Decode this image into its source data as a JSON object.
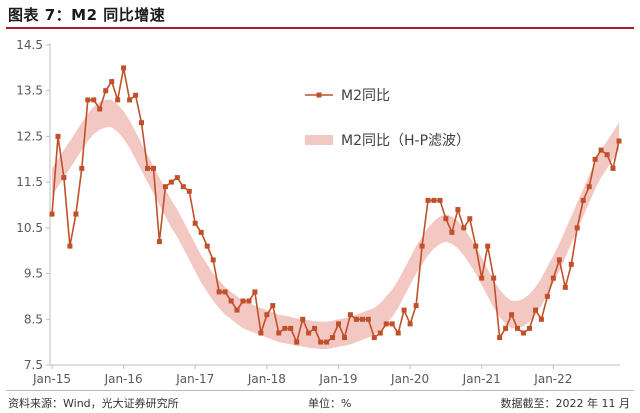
{
  "header": {
    "title": "图表 7：M2 同比增速"
  },
  "footer": {
    "source": "资料来源：Wind，光大证券研究所",
    "unit": "单位：%",
    "cutoff": "数据截至：2022 年 11 月"
  },
  "chart_data": {
    "type": "line",
    "colors": {
      "line": "#c0502a",
      "band": "#f3c8c3",
      "axis": "#bfbfbf"
    },
    "ylim": [
      7.5,
      14.5
    ],
    "yticks": [
      "14.5",
      "13.5",
      "12.5",
      "11.5",
      "10.5",
      "9.5",
      "8.5",
      "7.5"
    ],
    "xticks": [
      "Jan-15",
      "Jan-16",
      "Jan-17",
      "Jan-18",
      "Jan-19",
      "Jan-20",
      "Jan-21",
      "Jan-22"
    ],
    "xlabel": "",
    "ylabel": "",
    "grid": false,
    "legend_position": "upper-right",
    "series": [
      {
        "name": "M2同比",
        "kind": "line-marker",
        "values": [
          10.8,
          12.5,
          11.6,
          10.1,
          10.8,
          11.8,
          13.3,
          13.3,
          13.1,
          13.5,
          13.7,
          13.3,
          14.0,
          13.3,
          13.4,
          12.8,
          11.8,
          11.8,
          10.2,
          11.4,
          11.5,
          11.6,
          11.4,
          11.3,
          10.6,
          10.4,
          10.1,
          9.8,
          9.1,
          9.1,
          8.9,
          8.7,
          8.9,
          8.9,
          9.1,
          8.2,
          8.6,
          8.8,
          8.2,
          8.3,
          8.3,
          8.0,
          8.5,
          8.2,
          8.3,
          8.0,
          8.0,
          8.1,
          8.4,
          8.1,
          8.6,
          8.5,
          8.5,
          8.5,
          8.1,
          8.2,
          8.4,
          8.4,
          8.2,
          8.7,
          8.4,
          8.8,
          10.1,
          11.1,
          11.1,
          11.1,
          10.7,
          10.4,
          10.9,
          10.5,
          10.7,
          10.1,
          9.4,
          10.1,
          9.4,
          8.1,
          8.3,
          8.6,
          8.3,
          8.2,
          8.3,
          8.7,
          8.5,
          9.0,
          9.4,
          9.8,
          9.2,
          9.7,
          10.5,
          11.1,
          11.4,
          12.0,
          12.2,
          12.1,
          11.8,
          12.4
        ]
      },
      {
        "name": "M2同比（H-P滤波）",
        "kind": "band",
        "center": [
          11.5,
          11.7,
          11.9,
          12.1,
          12.3,
          12.5,
          12.7,
          12.85,
          12.95,
          13.0,
          13.0,
          12.9,
          12.75,
          12.55,
          12.3,
          12.05,
          11.8,
          11.55,
          11.3,
          11.05,
          10.8,
          10.6,
          10.35,
          10.1,
          9.85,
          9.6,
          9.4,
          9.2,
          9.05,
          8.9,
          8.8,
          8.7,
          8.6,
          8.55,
          8.5,
          8.45,
          8.4,
          8.35,
          8.3,
          8.28,
          8.25,
          8.22,
          8.2,
          8.18,
          8.16,
          8.15,
          8.15,
          8.17,
          8.2,
          8.22,
          8.25,
          8.3,
          8.35,
          8.4,
          8.45,
          8.55,
          8.7,
          8.85,
          9.05,
          9.3,
          9.55,
          9.8,
          10.0,
          10.2,
          10.35,
          10.45,
          10.5,
          10.45,
          10.35,
          10.2,
          10.0,
          9.8,
          9.55,
          9.3,
          9.05,
          8.85,
          8.7,
          8.6,
          8.6,
          8.65,
          8.75,
          8.9,
          9.1,
          9.35,
          9.6,
          9.85,
          10.15,
          10.45,
          10.75,
          11.05,
          11.35,
          11.65,
          11.9,
          12.1,
          12.3,
          12.5
        ],
        "width": 0.6
      }
    ]
  }
}
